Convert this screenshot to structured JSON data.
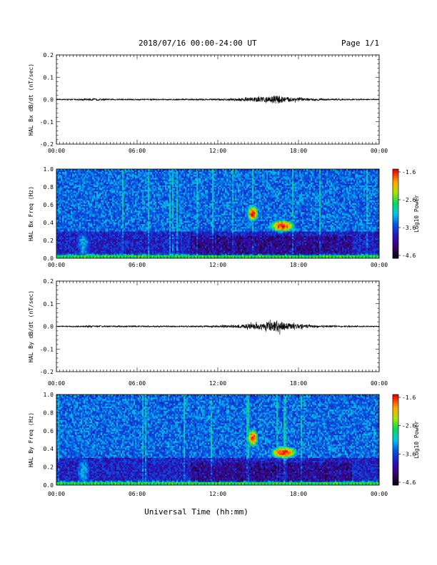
{
  "header": {
    "title": "2018/07/16  00:00-24:00 UT",
    "page": "Page 1/1"
  },
  "xlabel": "Universal Time (hh:mm)",
  "chart_data": [
    {
      "type": "line",
      "ylabel": "HAL Bx dB/dt (nT/sec)",
      "xticks": [
        "00:00",
        "06:00",
        "12:00",
        "18:00",
        "00:00"
      ],
      "yticks": [
        "0.2",
        "0.1",
        "0.0",
        "-0.1",
        "-0.2"
      ],
      "ylim": [
        -0.2,
        0.2
      ],
      "xlim_hours": [
        0,
        24
      ],
      "envelope": {
        "hours": [
          0,
          1.5,
          2.5,
          4,
          6,
          8,
          10,
          12,
          13.5,
          14.5,
          15.5,
          16,
          16.5,
          17,
          18,
          19,
          20,
          22,
          24
        ],
        "amplitude": [
          0.002,
          0.003,
          0.005,
          0.003,
          0.003,
          0.003,
          0.003,
          0.004,
          0.006,
          0.01,
          0.012,
          0.016,
          0.02,
          0.012,
          0.008,
          0.005,
          0.004,
          0.003,
          0.002
        ]
      }
    },
    {
      "type": "heatmap",
      "ylabel": "HAL Bx Freq (Hz)",
      "xticks": [
        "00:00",
        "06:00",
        "12:00",
        "18:00",
        "00:00"
      ],
      "yticks": [
        "1.0",
        "0.8",
        "0.6",
        "0.4",
        "0.2",
        "0.0"
      ],
      "ylim": [
        0,
        1.0
      ],
      "colorbar": {
        "label": "Log10 Power",
        "ticks": [
          "-1.6",
          "-2.6",
          "-3.6",
          "-4.6"
        ],
        "range": [
          -4.6,
          -1.6
        ]
      },
      "features": [
        {
          "center_hour": 14.6,
          "center_hz": 0.5,
          "width_h": 0.7,
          "height_hz": 0.16,
          "log_power": -1.8
        },
        {
          "center_hour": 16.8,
          "center_hz": 0.36,
          "width_h": 1.6,
          "height_hz": 0.12,
          "log_power": -1.9
        },
        {
          "center_hour": 2.0,
          "center_hz": 0.15,
          "width_h": 0.9,
          "height_hz": 0.3,
          "log_power": -3.4
        }
      ]
    },
    {
      "type": "line",
      "ylabel": "HAL By dB/dt (nT/sec)",
      "xticks": [
        "00:00",
        "06:00",
        "12:00",
        "18:00",
        "00:00"
      ],
      "yticks": [
        "0.2",
        "0.1",
        "0.0",
        "-0.1",
        "-0.2"
      ],
      "ylim": [
        -0.2,
        0.2
      ],
      "xlim_hours": [
        0,
        24
      ],
      "envelope": {
        "hours": [
          0,
          1.5,
          2.5,
          4,
          6,
          8,
          10,
          12,
          13.5,
          14.5,
          15.5,
          16,
          16.5,
          17,
          18,
          19,
          20,
          22,
          24
        ],
        "amplitude": [
          0.002,
          0.003,
          0.004,
          0.003,
          0.003,
          0.003,
          0.003,
          0.004,
          0.006,
          0.012,
          0.016,
          0.022,
          0.026,
          0.016,
          0.01,
          0.006,
          0.004,
          0.003,
          0.002
        ]
      }
    },
    {
      "type": "heatmap",
      "ylabel": "HAL By Freq (Hz)",
      "xticks": [
        "00:00",
        "06:00",
        "12:00",
        "18:00",
        "00:00"
      ],
      "yticks": [
        "1.0",
        "0.8",
        "0.6",
        "0.4",
        "0.2",
        "0.0"
      ],
      "ylim": [
        0,
        1.0
      ],
      "colorbar": {
        "label": "Log10 Power",
        "ticks": [
          "-1.6",
          "-2.6",
          "-3.6",
          "-4.6"
        ],
        "range": [
          -4.6,
          -1.6
        ]
      },
      "features": [
        {
          "center_hour": 14.6,
          "center_hz": 0.52,
          "width_h": 0.7,
          "height_hz": 0.16,
          "log_power": -1.9
        },
        {
          "center_hour": 16.9,
          "center_hz": 0.36,
          "width_h": 1.7,
          "height_hz": 0.12,
          "log_power": -1.8
        },
        {
          "center_hour": 2.0,
          "center_hz": 0.15,
          "width_h": 0.9,
          "height_hz": 0.3,
          "log_power": -3.4
        }
      ]
    }
  ]
}
